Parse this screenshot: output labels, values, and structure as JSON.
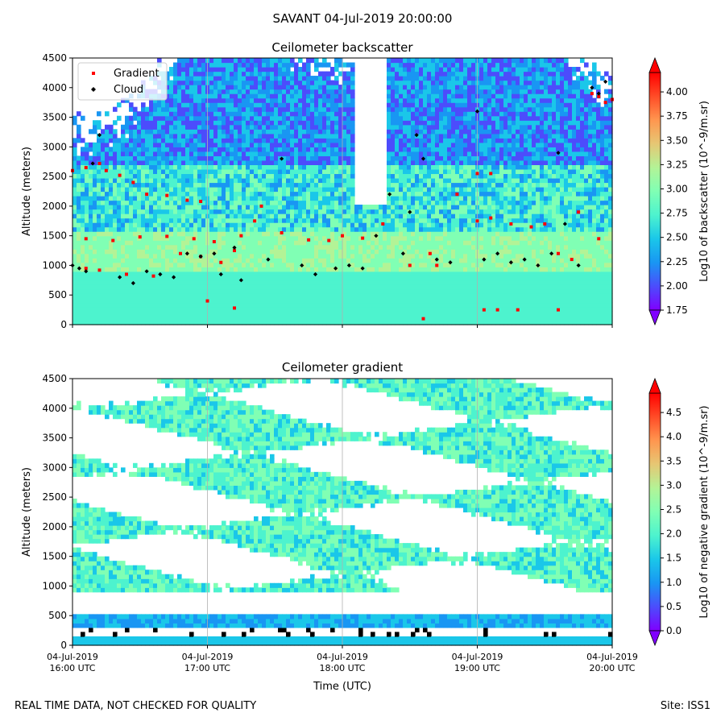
{
  "suptitle": "SAVANT 04-Jul-2019 20:00:00",
  "footer": {
    "left": "REAL TIME DATA, NOT CHECKED FOR QUALITY",
    "right": "Site: ISS1"
  },
  "colors": {
    "colormap": [
      "#8000ff",
      "#4c4cfc",
      "#1996f3",
      "#1ac7e9",
      "#4df3ce",
      "#80ffb4",
      "#b3f396",
      "#e6c774",
      "#ff964f",
      "#ff4c27",
      "#ff0000"
    ],
    "gradient_marker": "#ff0000",
    "cloud_marker": "#000000"
  },
  "chart_data": [
    {
      "type": "heatmap",
      "title": "Ceilometer backscatter",
      "xlabel": "",
      "ylabel": "Altitude (meters)",
      "x_ticks": [
        "04-Jul-2019\n16:00 UTC",
        "04-Jul-2019\n17:00 UTC",
        "04-Jul-2019\n18:00 UTC",
        "04-Jul-2019\n19:00 UTC",
        "04-Jul-2019\n20:00 UTC"
      ],
      "xlim": [
        16,
        20
      ],
      "ylim": [
        0,
        4500
      ],
      "y_ticks": [
        0,
        500,
        1000,
        1500,
        2000,
        2500,
        3000,
        3500,
        4000,
        4500
      ],
      "grid": true,
      "legend": {
        "position": "top-left",
        "entries": [
          "Gradient",
          "Cloud"
        ]
      },
      "colorbar": {
        "label": "Log10 of backscatter (10^-9/m.sr)",
        "range": [
          1.75,
          4.2
        ],
        "ticks": [
          "1.75",
          "2.00",
          "2.25",
          "2.50",
          "2.75",
          "3.00",
          "3.25",
          "3.50",
          "3.75",
          "4.00"
        ]
      },
      "series": [
        {
          "name": "Gradient",
          "points": [
            [
              16.0,
              2600
            ],
            [
              16.1,
              2650
            ],
            [
              16.2,
              2720
            ],
            [
              16.25,
              2600
            ],
            [
              16.35,
              2520
            ],
            [
              16.45,
              2400
            ],
            [
              16.55,
              2200
            ],
            [
              16.7,
              2180
            ],
            [
              16.85,
              2100
            ],
            [
              16.95,
              2080
            ],
            [
              16.1,
              1450
            ],
            [
              16.3,
              1420
            ],
            [
              16.5,
              1480
            ],
            [
              16.7,
              1490
            ],
            [
              16.9,
              1450
            ],
            [
              17.05,
              1400
            ],
            [
              16.1,
              950
            ],
            [
              16.2,
              920
            ],
            [
              16.4,
              850
            ],
            [
              16.6,
              820
            ],
            [
              16.8,
              1200
            ],
            [
              16.95,
              1150
            ],
            [
              17.1,
              1050
            ],
            [
              17.2,
              1250
            ],
            [
              17.25,
              1500
            ],
            [
              17.35,
              1750
            ],
            [
              17.4,
              2000
            ],
            [
              17.55,
              1550
            ],
            [
              17.75,
              1430
            ],
            [
              17.9,
              1420
            ],
            [
              18.0,
              1500
            ],
            [
              18.15,
              1460
            ],
            [
              18.3,
              1700
            ],
            [
              18.5,
              1000
            ],
            [
              18.65,
              1200
            ],
            [
              18.7,
              1000
            ],
            [
              18.85,
              2200
            ],
            [
              19.0,
              1750
            ],
            [
              19.1,
              1800
            ],
            [
              19.0,
              2550
            ],
            [
              19.1,
              2550
            ],
            [
              19.25,
              1700
            ],
            [
              19.4,
              1650
            ],
            [
              19.5,
              1700
            ],
            [
              19.6,
              1200
            ],
            [
              19.7,
              1100
            ],
            [
              19.9,
              1450
            ],
            [
              19.75,
              1900
            ],
            [
              19.85,
              3900
            ],
            [
              19.9,
              3850
            ],
            [
              19.95,
              3750
            ],
            [
              20.0,
              3800
            ],
            [
              19.05,
              250
            ],
            [
              19.15,
              250
            ],
            [
              19.3,
              250
            ],
            [
              19.6,
              250
            ],
            [
              17.0,
              400
            ],
            [
              17.2,
              280
            ],
            [
              18.6,
              100
            ]
          ]
        },
        {
          "name": "Cloud",
          "points": [
            [
              16.0,
              1000
            ],
            [
              16.05,
              950
            ],
            [
              16.1,
              900
            ],
            [
              16.15,
              2720
            ],
            [
              16.2,
              3200
            ],
            [
              16.35,
              800
            ],
            [
              16.45,
              700
            ],
            [
              16.55,
              900
            ],
            [
              16.65,
              850
            ],
            [
              16.75,
              800
            ],
            [
              16.85,
              1200
            ],
            [
              16.95,
              1150
            ],
            [
              17.05,
              1200
            ],
            [
              17.1,
              850
            ],
            [
              17.2,
              1300
            ],
            [
              17.25,
              750
            ],
            [
              17.45,
              1100
            ],
            [
              17.55,
              2800
            ],
            [
              17.7,
              1000
            ],
            [
              17.8,
              850
            ],
            [
              17.95,
              950
            ],
            [
              18.05,
              1000
            ],
            [
              18.15,
              950
            ],
            [
              18.25,
              1500
            ],
            [
              18.35,
              2200
            ],
            [
              18.45,
              1200
            ],
            [
              18.5,
              1900
            ],
            [
              18.55,
              3200
            ],
            [
              18.6,
              2800
            ],
            [
              18.7,
              1100
            ],
            [
              18.8,
              1050
            ],
            [
              19.0,
              3600
            ],
            [
              19.05,
              1100
            ],
            [
              19.15,
              1200
            ],
            [
              19.25,
              1050
            ],
            [
              19.35,
              1100
            ],
            [
              19.45,
              1000
            ],
            [
              19.55,
              1200
            ],
            [
              19.6,
              2900
            ],
            [
              19.65,
              1700
            ],
            [
              19.75,
              1000
            ],
            [
              19.85,
              4000
            ],
            [
              19.9,
              3900
            ],
            [
              19.95,
              4100
            ]
          ]
        }
      ]
    },
    {
      "type": "heatmap",
      "title": "Ceilometer gradient",
      "xlabel": "Time (UTC)",
      "ylabel": "Altitude (meters)",
      "x_ticks": [
        "04-Jul-2019\n16:00 UTC",
        "04-Jul-2019\n17:00 UTC",
        "04-Jul-2019\n18:00 UTC",
        "04-Jul-2019\n19:00 UTC",
        "04-Jul-2019\n20:00 UTC"
      ],
      "xlim": [
        16,
        20
      ],
      "ylim": [
        0,
        4500
      ],
      "y_ticks": [
        0,
        500,
        1000,
        1500,
        2000,
        2500,
        3000,
        3500,
        4000,
        4500
      ],
      "grid": true,
      "colorbar": {
        "label": "Log10 of negative gradient (10^-9/m.sr)",
        "range": [
          0.0,
          4.9
        ],
        "ticks": [
          "0.0",
          "0.5",
          "1.0",
          "1.5",
          "2.0",
          "2.5",
          "3.0",
          "3.5",
          "4.0",
          "4.5"
        ]
      }
    }
  ]
}
